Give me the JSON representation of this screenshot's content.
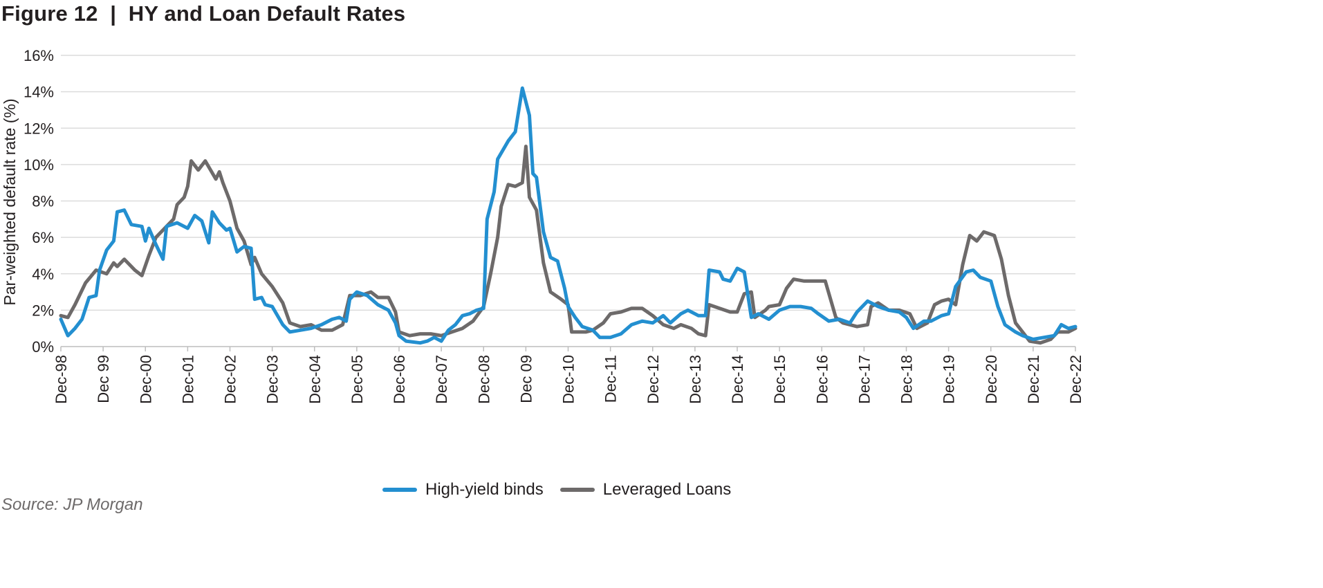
{
  "title": "Figure 12  |  HY and Loan Default Rates",
  "source": "Source: JP Morgan",
  "chart_data": {
    "type": "line",
    "title": "HY and Loan Default Rates",
    "xlabel": "",
    "ylabel": "Par-weighted default rate (%)",
    "ylim": [
      0,
      16
    ],
    "yticks": [
      "0%",
      "2%",
      "4%",
      "6%",
      "8%",
      "10%",
      "12%",
      "14%",
      "16%"
    ],
    "xticks": [
      "Dec-98",
      "Dec 99",
      "Dec-00",
      "Dec-01",
      "Dec-02",
      "Dec-03",
      "Dec-04",
      "Dec-05",
      "Dec-06",
      "Dec-07",
      "Dec-08",
      "Dec 09",
      "Dec-10",
      "Dec-11",
      "Dec-12",
      "Dec-13",
      "Dec-14",
      "Dec-15",
      "Dec-16",
      "Dec-17",
      "Dec-18",
      "Dec-19",
      "Dec-20",
      "Dec-21",
      "Dec-22"
    ],
    "x_unit": "months since Dec-98",
    "xlim": [
      0,
      288
    ],
    "grid": true,
    "legend_position": "bottom-center",
    "series": [
      {
        "name": "High-yield binds",
        "color": "#238fd0",
        "points": [
          [
            0,
            1.5
          ],
          [
            2,
            0.6
          ],
          [
            4,
            1.0
          ],
          [
            6,
            1.5
          ],
          [
            8,
            2.7
          ],
          [
            10,
            2.8
          ],
          [
            11,
            4.2
          ],
          [
            13,
            5.3
          ],
          [
            15,
            5.8
          ],
          [
            16,
            7.4
          ],
          [
            18,
            7.5
          ],
          [
            20,
            6.7
          ],
          [
            23,
            6.6
          ],
          [
            24,
            5.8
          ],
          [
            25,
            6.5
          ],
          [
            27,
            5.6
          ],
          [
            29,
            4.8
          ],
          [
            30,
            6.6
          ],
          [
            33,
            6.8
          ],
          [
            36,
            6.5
          ],
          [
            38,
            7.2
          ],
          [
            40,
            6.9
          ],
          [
            42,
            5.7
          ],
          [
            43,
            7.4
          ],
          [
            45,
            6.8
          ],
          [
            47,
            6.4
          ],
          [
            48,
            6.5
          ],
          [
            50,
            5.2
          ],
          [
            52,
            5.5
          ],
          [
            54,
            5.4
          ],
          [
            55,
            2.6
          ],
          [
            57,
            2.7
          ],
          [
            58,
            2.3
          ],
          [
            60,
            2.2
          ],
          [
            63,
            1.2
          ],
          [
            65,
            0.8
          ],
          [
            68,
            0.9
          ],
          [
            71,
            1.0
          ],
          [
            74,
            1.2
          ],
          [
            77,
            1.5
          ],
          [
            79,
            1.6
          ],
          [
            81,
            1.4
          ],
          [
            82,
            2.6
          ],
          [
            84,
            3.0
          ],
          [
            87,
            2.8
          ],
          [
            90,
            2.3
          ],
          [
            93,
            2.0
          ],
          [
            95,
            1.3
          ],
          [
            96,
            0.6
          ],
          [
            98,
            0.3
          ],
          [
            102,
            0.2
          ],
          [
            104,
            0.3
          ],
          [
            106,
            0.5
          ],
          [
            108,
            0.3
          ],
          [
            110,
            0.9
          ],
          [
            112,
            1.2
          ],
          [
            114,
            1.7
          ],
          [
            116,
            1.8
          ],
          [
            118,
            2.0
          ],
          [
            120,
            2.1
          ],
          [
            121,
            7.0
          ],
          [
            123,
            8.5
          ],
          [
            124,
            10.3
          ],
          [
            127,
            11.3
          ],
          [
            129,
            11.8
          ],
          [
            130,
            13.0
          ],
          [
            131,
            14.2
          ],
          [
            133,
            12.7
          ],
          [
            134,
            9.5
          ],
          [
            135,
            9.3
          ],
          [
            137,
            6.3
          ],
          [
            139,
            4.9
          ],
          [
            141,
            4.7
          ],
          [
            143,
            3.2
          ],
          [
            144,
            2.2
          ],
          [
            146,
            1.6
          ],
          [
            148,
            1.1
          ],
          [
            151,
            0.9
          ],
          [
            153,
            0.5
          ],
          [
            156,
            0.5
          ],
          [
            159,
            0.7
          ],
          [
            162,
            1.2
          ],
          [
            165,
            1.4
          ],
          [
            168,
            1.3
          ],
          [
            171,
            1.7
          ],
          [
            173,
            1.3
          ],
          [
            176,
            1.8
          ],
          [
            178,
            2.0
          ],
          [
            181,
            1.7
          ],
          [
            183,
            1.7
          ],
          [
            184,
            4.2
          ],
          [
            187,
            4.1
          ],
          [
            188,
            3.7
          ],
          [
            190,
            3.6
          ],
          [
            192,
            4.3
          ],
          [
            194,
            4.1
          ],
          [
            196,
            1.6
          ],
          [
            198,
            1.8
          ],
          [
            201,
            1.5
          ],
          [
            204,
            2.0
          ],
          [
            207,
            2.2
          ],
          [
            210,
            2.2
          ],
          [
            213,
            2.1
          ],
          [
            215,
            1.8
          ],
          [
            218,
            1.4
          ],
          [
            221,
            1.5
          ],
          [
            224,
            1.3
          ],
          [
            226,
            1.9
          ],
          [
            229,
            2.5
          ],
          [
            232,
            2.2
          ],
          [
            235,
            2.0
          ],
          [
            238,
            1.9
          ],
          [
            240,
            1.6
          ],
          [
            242,
            1.0
          ],
          [
            245,
            1.4
          ],
          [
            247,
            1.4
          ],
          [
            250,
            1.7
          ],
          [
            252,
            1.8
          ],
          [
            254,
            3.3
          ],
          [
            257,
            4.1
          ],
          [
            259,
            4.2
          ],
          [
            261,
            3.8
          ],
          [
            264,
            3.6
          ],
          [
            266,
            2.2
          ],
          [
            268,
            1.2
          ],
          [
            271,
            0.8
          ],
          [
            273,
            0.6
          ],
          [
            276,
            0.4
          ],
          [
            279,
            0.5
          ],
          [
            282,
            0.6
          ],
          [
            284,
            1.2
          ],
          [
            286,
            1.0
          ],
          [
            288,
            1.1
          ]
        ]
      },
      {
        "name": "Leveraged Loans",
        "color": "#6d6a6a",
        "points": [
          [
            0,
            1.7
          ],
          [
            2,
            1.6
          ],
          [
            4,
            2.3
          ],
          [
            7,
            3.5
          ],
          [
            10,
            4.2
          ],
          [
            13,
            4.0
          ],
          [
            15,
            4.6
          ],
          [
            16,
            4.4
          ],
          [
            18,
            4.8
          ],
          [
            21,
            4.2
          ],
          [
            23,
            3.9
          ],
          [
            25,
            5.0
          ],
          [
            27,
            6.0
          ],
          [
            30,
            6.6
          ],
          [
            32,
            7.0
          ],
          [
            33,
            7.8
          ],
          [
            35,
            8.2
          ],
          [
            36,
            8.8
          ],
          [
            37,
            10.2
          ],
          [
            39,
            9.7
          ],
          [
            41,
            10.2
          ],
          [
            44,
            9.2
          ],
          [
            45,
            9.6
          ],
          [
            46,
            9.0
          ],
          [
            48,
            8.0
          ],
          [
            50,
            6.5
          ],
          [
            52,
            5.8
          ],
          [
            54,
            4.5
          ],
          [
            55,
            4.9
          ],
          [
            57,
            4.0
          ],
          [
            60,
            3.3
          ],
          [
            63,
            2.4
          ],
          [
            65,
            1.3
          ],
          [
            68,
            1.1
          ],
          [
            71,
            1.2
          ],
          [
            74,
            0.9
          ],
          [
            77,
            0.9
          ],
          [
            80,
            1.2
          ],
          [
            82,
            2.8
          ],
          [
            85,
            2.8
          ],
          [
            88,
            3.0
          ],
          [
            90,
            2.7
          ],
          [
            93,
            2.7
          ],
          [
            95,
            1.9
          ],
          [
            96,
            0.8
          ],
          [
            99,
            0.6
          ],
          [
            102,
            0.7
          ],
          [
            105,
            0.7
          ],
          [
            108,
            0.6
          ],
          [
            111,
            0.8
          ],
          [
            114,
            1.0
          ],
          [
            117,
            1.4
          ],
          [
            120,
            2.2
          ],
          [
            122,
            4.0
          ],
          [
            124,
            6.0
          ],
          [
            125,
            7.7
          ],
          [
            127,
            8.9
          ],
          [
            129,
            8.8
          ],
          [
            131,
            9.0
          ],
          [
            132,
            11.0
          ],
          [
            133,
            8.2
          ],
          [
            135,
            7.5
          ],
          [
            137,
            4.6
          ],
          [
            139,
            3.0
          ],
          [
            142,
            2.6
          ],
          [
            144,
            2.3
          ],
          [
            145,
            0.8
          ],
          [
            149,
            0.8
          ],
          [
            151,
            0.9
          ],
          [
            154,
            1.3
          ],
          [
            156,
            1.8
          ],
          [
            159,
            1.9
          ],
          [
            162,
            2.1
          ],
          [
            165,
            2.1
          ],
          [
            168,
            1.7
          ],
          [
            171,
            1.2
          ],
          [
            174,
            1.0
          ],
          [
            176,
            1.2
          ],
          [
            179,
            1.0
          ],
          [
            181,
            0.7
          ],
          [
            183,
            0.6
          ],
          [
            184,
            2.3
          ],
          [
            187,
            2.1
          ],
          [
            190,
            1.9
          ],
          [
            192,
            1.9
          ],
          [
            194,
            2.9
          ],
          [
            196,
            3.0
          ],
          [
            197,
            1.6
          ],
          [
            200,
            2.0
          ],
          [
            201,
            2.2
          ],
          [
            204,
            2.3
          ],
          [
            206,
            3.2
          ],
          [
            208,
            3.7
          ],
          [
            211,
            3.6
          ],
          [
            214,
            3.6
          ],
          [
            217,
            3.6
          ],
          [
            220,
            1.6
          ],
          [
            222,
            1.3
          ],
          [
            226,
            1.1
          ],
          [
            229,
            1.2
          ],
          [
            230,
            2.2
          ],
          [
            232,
            2.4
          ],
          [
            235,
            2.0
          ],
          [
            238,
            2.0
          ],
          [
            241,
            1.8
          ],
          [
            243,
            1.0
          ],
          [
            246,
            1.3
          ],
          [
            248,
            2.3
          ],
          [
            250,
            2.5
          ],
          [
            252,
            2.6
          ],
          [
            254,
            2.3
          ],
          [
            256,
            4.5
          ],
          [
            258,
            6.1
          ],
          [
            260,
            5.8
          ],
          [
            262,
            6.3
          ],
          [
            265,
            6.1
          ],
          [
            267,
            4.8
          ],
          [
            269,
            2.8
          ],
          [
            271,
            1.3
          ],
          [
            273,
            0.8
          ],
          [
            275,
            0.3
          ],
          [
            278,
            0.2
          ],
          [
            281,
            0.4
          ],
          [
            283,
            0.8
          ],
          [
            286,
            0.8
          ],
          [
            288,
            1.0
          ]
        ]
      }
    ]
  }
}
